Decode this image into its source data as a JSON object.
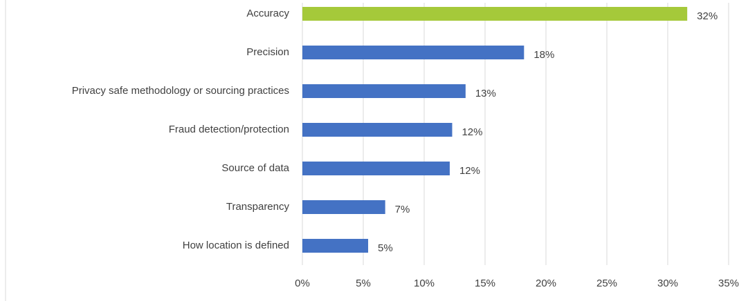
{
  "chart_data": {
    "type": "bar",
    "orientation": "horizontal",
    "categories": [
      "Accuracy",
      "Precision",
      "Privacy safe methodology or sourcing practices",
      "Fraud detection/protection",
      "Source of data",
      "Transparency",
      "How location is defined"
    ],
    "values": [
      31.6,
      18.2,
      13.4,
      12.3,
      12.1,
      6.8,
      5.4
    ],
    "value_labels": [
      "32%",
      "18%",
      "13%",
      "12%",
      "12%",
      "7%",
      "5%"
    ],
    "colors": [
      "#a5c93a",
      "#4472c4",
      "#4472c4",
      "#4472c4",
      "#4472c4",
      "#4472c4",
      "#4472c4"
    ],
    "xlim": [
      0,
      35
    ],
    "xticks": [
      {
        "value": 0,
        "label": "0%"
      },
      {
        "value": 5,
        "label": "5%"
      },
      {
        "value": 10,
        "label": "10%"
      },
      {
        "value": 15,
        "label": "15%"
      },
      {
        "value": 20,
        "label": "20%"
      },
      {
        "value": 25,
        "label": "25%"
      },
      {
        "value": 30,
        "label": "30%"
      },
      {
        "value": 35,
        "label": "35%"
      }
    ],
    "grid": true
  }
}
